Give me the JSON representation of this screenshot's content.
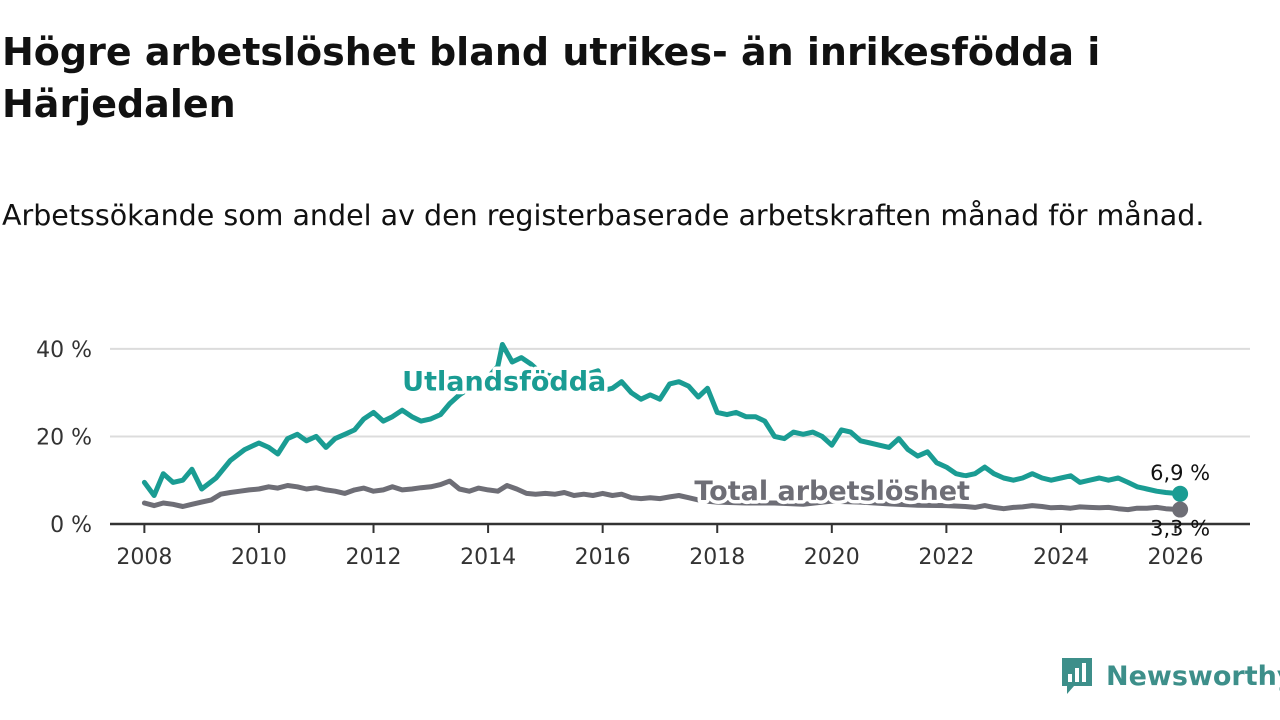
{
  "header": {
    "title": "Högre arbetslöshet bland utrikes- än inrikesfödda i Härjedalen",
    "subtitle": "Arbetssökande som andel av den registerbaserade arbetskraften månad för månad."
  },
  "brand": {
    "name": "Newsworthy",
    "icon": "newsworthy-logo-icon",
    "color": "#3d8f8a"
  },
  "chart_data": {
    "type": "line",
    "title": "Högre arbetslöshet bland utrikes- än inrikesfödda i Härjedalen",
    "subtitle": "Arbetssökande som andel av den registerbaserade arbetskraften månad för månad.",
    "xlabel": "",
    "ylabel": "",
    "xlim": [
      2007.4,
      2027.3
    ],
    "ylim": [
      0,
      45
    ],
    "grid": true,
    "x_ticks": [
      2008,
      2010,
      2012,
      2014,
      2016,
      2018,
      2020,
      2022,
      2024,
      2026
    ],
    "x_tick_labels": [
      "2008",
      "2010",
      "2012",
      "2014",
      "2016",
      "2018",
      "2020",
      "2022",
      "2024",
      "2026"
    ],
    "y_ticks": [
      0,
      20,
      40
    ],
    "y_tick_labels": [
      "0 %",
      "20 %",
      "40 %"
    ],
    "series": [
      {
        "name": "Utlandsfödda",
        "color": "#1a9c93",
        "label_anchor": [
          2012.5,
          30.5
        ],
        "end_label": "6,9 %",
        "end_value": 6.9,
        "points": [
          [
            2008.0,
            9.5
          ],
          [
            2008.17,
            6.5
          ],
          [
            2008.33,
            11.5
          ],
          [
            2008.5,
            9.5
          ],
          [
            2008.67,
            10.0
          ],
          [
            2008.83,
            12.5
          ],
          [
            2009.0,
            8.0
          ],
          [
            2009.25,
            10.5
          ],
          [
            2009.5,
            14.5
          ],
          [
            2009.75,
            17.0
          ],
          [
            2010.0,
            18.5
          ],
          [
            2010.17,
            17.5
          ],
          [
            2010.33,
            16.0
          ],
          [
            2010.5,
            19.5
          ],
          [
            2010.67,
            20.5
          ],
          [
            2010.83,
            19.0
          ],
          [
            2011.0,
            20.0
          ],
          [
            2011.17,
            17.5
          ],
          [
            2011.33,
            19.5
          ],
          [
            2011.5,
            20.5
          ],
          [
            2011.67,
            21.5
          ],
          [
            2011.83,
            24.0
          ],
          [
            2012.0,
            25.5
          ],
          [
            2012.17,
            23.5
          ],
          [
            2012.33,
            24.5
          ],
          [
            2012.5,
            26.0
          ],
          [
            2012.67,
            24.5
          ],
          [
            2012.83,
            23.5
          ],
          [
            2013.0,
            24.0
          ],
          [
            2013.17,
            25.0
          ],
          [
            2013.33,
            27.5
          ],
          [
            2013.5,
            29.5
          ],
          [
            2013.67,
            31.0
          ],
          [
            2013.83,
            32.5
          ],
          [
            2014.0,
            33.5
          ],
          [
            2014.17,
            36.0
          ],
          [
            2014.25,
            41.0
          ],
          [
            2014.42,
            37.0
          ],
          [
            2014.58,
            38.0
          ],
          [
            2014.75,
            36.5
          ],
          [
            2014.92,
            34.5
          ],
          [
            2015.17,
            33.5
          ],
          [
            2015.42,
            32.5
          ],
          [
            2015.67,
            34.0
          ],
          [
            2015.92,
            35.0
          ],
          [
            2016.0,
            30.5
          ],
          [
            2016.17,
            31.0
          ],
          [
            2016.33,
            32.5
          ],
          [
            2016.5,
            30.0
          ],
          [
            2016.67,
            28.5
          ],
          [
            2016.83,
            29.5
          ],
          [
            2017.0,
            28.5
          ],
          [
            2017.17,
            32.0
          ],
          [
            2017.33,
            32.5
          ],
          [
            2017.5,
            31.5
          ],
          [
            2017.67,
            29.0
          ],
          [
            2017.83,
            31.0
          ],
          [
            2018.0,
            25.5
          ],
          [
            2018.17,
            25.0
          ],
          [
            2018.33,
            25.5
          ],
          [
            2018.5,
            24.5
          ],
          [
            2018.67,
            24.5
          ],
          [
            2018.83,
            23.5
          ],
          [
            2019.0,
            20.0
          ],
          [
            2019.17,
            19.5
          ],
          [
            2019.33,
            21.0
          ],
          [
            2019.5,
            20.5
          ],
          [
            2019.67,
            21.0
          ],
          [
            2019.83,
            20.0
          ],
          [
            2020.0,
            18.0
          ],
          [
            2020.17,
            21.5
          ],
          [
            2020.33,
            21.0
          ],
          [
            2020.5,
            19.0
          ],
          [
            2020.67,
            18.5
          ],
          [
            2020.83,
            18.0
          ],
          [
            2021.0,
            17.5
          ],
          [
            2021.17,
            19.5
          ],
          [
            2021.33,
            17.0
          ],
          [
            2021.5,
            15.5
          ],
          [
            2021.67,
            16.5
          ],
          [
            2021.83,
            14.0
          ],
          [
            2022.0,
            13.0
          ],
          [
            2022.17,
            11.5
          ],
          [
            2022.33,
            11.0
          ],
          [
            2022.5,
            11.5
          ],
          [
            2022.67,
            13.0
          ],
          [
            2022.83,
            11.5
          ],
          [
            2023.0,
            10.5
          ],
          [
            2023.17,
            10.0
          ],
          [
            2023.33,
            10.5
          ],
          [
            2023.5,
            11.5
          ],
          [
            2023.67,
            10.5
          ],
          [
            2023.83,
            10.0
          ],
          [
            2024.0,
            10.5
          ],
          [
            2024.17,
            11.0
          ],
          [
            2024.33,
            9.5
          ],
          [
            2024.5,
            10.0
          ],
          [
            2024.67,
            10.5
          ],
          [
            2024.83,
            10.0
          ],
          [
            2025.0,
            10.5
          ],
          [
            2025.17,
            9.5
          ],
          [
            2025.33,
            8.5
          ],
          [
            2025.5,
            8.0
          ],
          [
            2025.67,
            7.5
          ],
          [
            2025.83,
            7.2
          ],
          [
            2026.08,
            6.9
          ]
        ]
      },
      {
        "name": "Total arbetslöshet",
        "color": "#6e6e76",
        "label_anchor": [
          2017.6,
          5.5
        ],
        "end_label": "3,3 %",
        "end_value": 3.3,
        "points": [
          [
            2008.0,
            4.8
          ],
          [
            2008.17,
            4.2
          ],
          [
            2008.33,
            4.8
          ],
          [
            2008.5,
            4.5
          ],
          [
            2008.67,
            4.0
          ],
          [
            2008.83,
            4.5
          ],
          [
            2009.0,
            5.0
          ],
          [
            2009.17,
            5.5
          ],
          [
            2009.33,
            6.8
          ],
          [
            2009.5,
            7.2
          ],
          [
            2009.67,
            7.5
          ],
          [
            2009.83,
            7.8
          ],
          [
            2010.0,
            8.0
          ],
          [
            2010.17,
            8.5
          ],
          [
            2010.33,
            8.2
          ],
          [
            2010.5,
            8.8
          ],
          [
            2010.67,
            8.5
          ],
          [
            2010.83,
            8.0
          ],
          [
            2011.0,
            8.3
          ],
          [
            2011.17,
            7.8
          ],
          [
            2011.33,
            7.5
          ],
          [
            2011.5,
            7.0
          ],
          [
            2011.67,
            7.8
          ],
          [
            2011.83,
            8.2
          ],
          [
            2012.0,
            7.5
          ],
          [
            2012.17,
            7.8
          ],
          [
            2012.33,
            8.5
          ],
          [
            2012.5,
            7.8
          ],
          [
            2012.67,
            8.0
          ],
          [
            2012.83,
            8.3
          ],
          [
            2013.0,
            8.5
          ],
          [
            2013.17,
            9.0
          ],
          [
            2013.33,
            9.8
          ],
          [
            2013.5,
            8.0
          ],
          [
            2013.67,
            7.5
          ],
          [
            2013.83,
            8.2
          ],
          [
            2014.0,
            7.8
          ],
          [
            2014.17,
            7.5
          ],
          [
            2014.33,
            8.8
          ],
          [
            2014.5,
            8.0
          ],
          [
            2014.67,
            7.0
          ],
          [
            2014.83,
            6.8
          ],
          [
            2015.0,
            7.0
          ],
          [
            2015.17,
            6.8
          ],
          [
            2015.33,
            7.2
          ],
          [
            2015.5,
            6.5
          ],
          [
            2015.67,
            6.8
          ],
          [
            2015.83,
            6.5
          ],
          [
            2016.0,
            7.0
          ],
          [
            2016.17,
            6.5
          ],
          [
            2016.33,
            6.8
          ],
          [
            2016.5,
            6.0
          ],
          [
            2016.67,
            5.8
          ],
          [
            2016.83,
            6.0
          ],
          [
            2017.0,
            5.8
          ],
          [
            2017.17,
            6.2
          ],
          [
            2017.33,
            6.5
          ],
          [
            2017.5,
            6.0
          ],
          [
            2017.67,
            5.5
          ],
          [
            2017.83,
            5.2
          ],
          [
            2018.0,
            5.0
          ],
          [
            2018.5,
            4.8
          ],
          [
            2019.0,
            4.8
          ],
          [
            2019.5,
            4.5
          ],
          [
            2020.0,
            5.2
          ],
          [
            2020.5,
            5.0
          ],
          [
            2021.0,
            4.6
          ],
          [
            2021.5,
            4.3
          ],
          [
            2022.0,
            4.2
          ],
          [
            2022.33,
            4.0
          ],
          [
            2022.5,
            3.8
          ],
          [
            2022.67,
            4.2
          ],
          [
            2022.83,
            3.8
          ],
          [
            2023.0,
            3.5
          ],
          [
            2023.17,
            3.8
          ],
          [
            2023.33,
            3.9
          ],
          [
            2023.5,
            4.2
          ],
          [
            2023.67,
            4.0
          ],
          [
            2023.83,
            3.7
          ],
          [
            2024.0,
            3.8
          ],
          [
            2024.17,
            3.6
          ],
          [
            2024.33,
            3.9
          ],
          [
            2024.5,
            3.8
          ],
          [
            2024.67,
            3.7
          ],
          [
            2024.83,
            3.8
          ],
          [
            2025.0,
            3.5
          ],
          [
            2025.17,
            3.3
          ],
          [
            2025.33,
            3.6
          ],
          [
            2025.5,
            3.6
          ],
          [
            2025.67,
            3.8
          ],
          [
            2025.83,
            3.5
          ],
          [
            2026.08,
            3.3
          ]
        ]
      }
    ]
  }
}
